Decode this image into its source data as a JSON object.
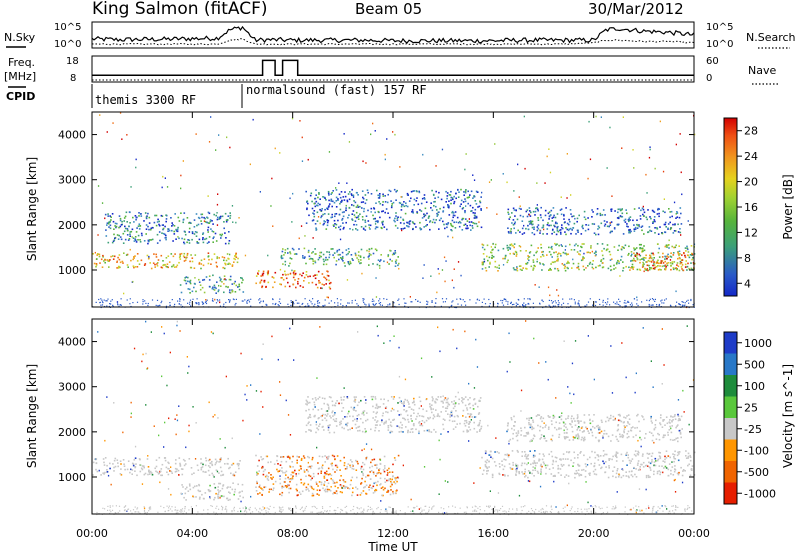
{
  "header": {
    "station": "King Salmon (fitACF)",
    "beam": "Beam 05",
    "date": "30/Mar/2012"
  },
  "panel_labels": {
    "nsky": "N.Sky",
    "nsearch": "N.Search",
    "freq": "Freq.",
    "freq_unit": "[MHz]",
    "nave": "Nave",
    "cpid": "CPID"
  },
  "cpid_segments": [
    {
      "label": "themis 3300 RF",
      "start_hour": 0
    },
    {
      "label": "normalsound (fast) 157 RF",
      "start_hour": 6
    }
  ],
  "chart_data": [
    {
      "id": "noise",
      "type": "line",
      "ylabel_left": "N.Sky",
      "ylabel_right": "N.Search",
      "ytick_left": [
        "10^5",
        "10^0"
      ],
      "ytick_right": [
        "10^5",
        "10^0"
      ],
      "x_hours": [
        0,
        1,
        2,
        3,
        4,
        5,
        5.5,
        6,
        6.5,
        7,
        8,
        9,
        10,
        11,
        12,
        13,
        14,
        15,
        16,
        17,
        18,
        19,
        20,
        20.5,
        21,
        22,
        23,
        24
      ],
      "nsky_level": [
        0.35,
        0.32,
        0.33,
        0.34,
        0.36,
        0.38,
        0.7,
        0.8,
        0.3,
        0.32,
        0.3,
        0.3,
        0.3,
        0.3,
        0.28,
        0.28,
        0.28,
        0.28,
        0.28,
        0.3,
        0.3,
        0.3,
        0.3,
        0.7,
        0.75,
        0.65,
        0.6,
        0.5
      ],
      "nsearch_level": [
        0.15,
        0.15,
        0.15,
        0.15,
        0.15,
        0.15,
        0.3,
        0.35,
        0.15,
        0.15,
        0.15,
        0.15,
        0.15,
        0.15,
        0.15,
        0.15,
        0.15,
        0.15,
        0.15,
        0.15,
        0.15,
        0.15,
        0.2,
        0.3,
        0.3,
        0.25,
        0.25,
        0.2
      ]
    },
    {
      "id": "frequency",
      "type": "line",
      "ylabel_left": "Freq. [MHz]",
      "ylabel_right": "Nave",
      "ytick_left": [
        "18",
        "8"
      ],
      "ytick_right": [
        "60",
        "0"
      ],
      "ylim_left": [
        8,
        18
      ],
      "freq_steps": [
        {
          "start": 0,
          "end": 6.2,
          "mhz": 10.6
        },
        {
          "start": 6.2,
          "end": 6.8,
          "mhz": 10.6
        },
        {
          "start": 6.8,
          "end": 7.3,
          "mhz": 16.3
        },
        {
          "start": 7.3,
          "end": 7.6,
          "mhz": 10.6
        },
        {
          "start": 7.6,
          "end": 8.2,
          "mhz": 16.3
        },
        {
          "start": 8.2,
          "end": 24,
          "mhz": 10.6
        }
      ]
    },
    {
      "id": "power",
      "type": "heatmap",
      "ylabel": "Slant Range [km]",
      "yticks": [
        1000,
        2000,
        3000,
        4000
      ],
      "ylim": [
        180,
        4500
      ],
      "xlim": [
        0,
        24
      ],
      "colorbar_label": "Power [dB]",
      "colorbar_ticks": [
        "28",
        "24",
        "20",
        "16",
        "12",
        "8",
        "4"
      ],
      "colors": [
        "#1428c8",
        "#2a5ac8",
        "#3c8cc0",
        "#3ca078",
        "#56b43c",
        "#96c83c",
        "#d2d228",
        "#f0a01e",
        "#f06e14",
        "#e63c0a",
        "#d20000"
      ],
      "bands": [
        {
          "x0": 0.0,
          "x1": 5.9,
          "r0": 1050,
          "r1": 1400,
          "level": 0.65
        },
        {
          "x0": 0.5,
          "x1": 5.5,
          "r0": 1600,
          "r1": 2300,
          "level": 0.2
        },
        {
          "x0": 3.5,
          "x1": 6.0,
          "r0": 500,
          "r1": 900,
          "level": 0.3
        },
        {
          "x0": 6.5,
          "x1": 9.5,
          "r0": 600,
          "r1": 1000,
          "level": 0.8
        },
        {
          "x0": 7.5,
          "x1": 12.2,
          "r0": 1100,
          "r1": 1500,
          "level": 0.3
        },
        {
          "x0": 8.5,
          "x1": 15.5,
          "r0": 1900,
          "r1": 2800,
          "level": 0.15
        },
        {
          "x0": 15.5,
          "x1": 24.0,
          "r0": 1000,
          "r1": 1600,
          "level": 0.45
        },
        {
          "x0": 16.5,
          "x1": 23.5,
          "r0": 1800,
          "r1": 2400,
          "level": 0.15
        },
        {
          "x0": 21.5,
          "x1": 24.0,
          "r0": 1000,
          "r1": 1400,
          "level": 0.75
        }
      ]
    },
    {
      "id": "velocity",
      "type": "heatmap",
      "ylabel": "Slant Range [km]",
      "yticks": [
        1000,
        2000,
        3000,
        4000
      ],
      "ylim": [
        180,
        4500
      ],
      "xlim": [
        0,
        24
      ],
      "xticks": [
        "00:00",
        "04:00",
        "08:00",
        "12:00",
        "16:00",
        "20:00",
        "00:00"
      ],
      "xlabel": "Time UT",
      "colorbar_label": "Velocity [m s^-1]",
      "colorbar_ticks": [
        "1000",
        "500",
        "100",
        "25",
        "-25",
        "-100",
        "-500",
        "-1000"
      ],
      "colors": [
        "#1e3cc8",
        "#2878c8",
        "#1e8c3c",
        "#5ac83c",
        "#c8c8c8",
        "#ff9600",
        "#f06400",
        "#e61e00"
      ],
      "bands": [
        {
          "x0": 0.0,
          "x1": 5.9,
          "r0": 1050,
          "r1": 1450,
          "level": 0.5
        },
        {
          "x0": 3.5,
          "x1": 6.0,
          "r0": 500,
          "r1": 900,
          "level": 0.5
        },
        {
          "x0": 6.5,
          "x1": 12.2,
          "r0": 600,
          "r1": 1500,
          "level": 0.8
        },
        {
          "x0": 8.5,
          "x1": 15.5,
          "r0": 2000,
          "r1": 2800,
          "level": 0.5
        },
        {
          "x0": 15.5,
          "x1": 24.0,
          "r0": 1000,
          "r1": 1600,
          "level": 0.5
        },
        {
          "x0": 16.5,
          "x1": 23.5,
          "r0": 1800,
          "r1": 2400,
          "level": 0.5
        }
      ]
    }
  ]
}
